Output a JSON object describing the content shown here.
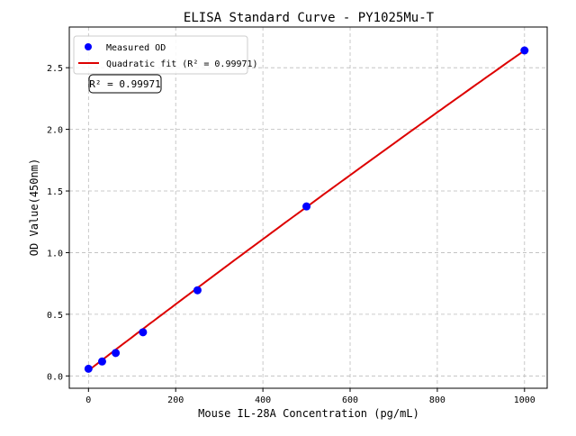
{
  "chart_data": {
    "type": "scatter",
    "title": "ELISA Standard Curve - PY1025Mu-T",
    "xlabel": "Mouse IL-28A Concentration (pg/mL)",
    "ylabel": "OD Value(450nm)",
    "xlim": [
      -44,
      1052
    ],
    "ylim": [
      -0.1,
      2.83
    ],
    "xticks": [
      0,
      200,
      400,
      600,
      800,
      1000
    ],
    "yticks": [
      0.0,
      0.5,
      1.0,
      1.5,
      2.0,
      2.5
    ],
    "xtick_labels": [
      "0",
      "200",
      "400",
      "600",
      "800",
      "1000"
    ],
    "ytick_labels": [
      "0.0",
      "0.5",
      "1.0",
      "1.5",
      "2.0",
      "2.5"
    ],
    "grid": true,
    "legend_position": "top-left",
    "series": [
      {
        "name": "Measured OD",
        "type": "scatter",
        "color": "#0000ff",
        "x": [
          0,
          31.25,
          62.5,
          125,
          250,
          500,
          1000
        ],
        "y": [
          0.058,
          0.117,
          0.186,
          0.354,
          0.695,
          1.375,
          2.64
        ]
      },
      {
        "name": "Quadratic fit (R² = 0.99971)",
        "type": "line",
        "color": "#dd0000",
        "coefficients": {
          "a": 0.045,
          "b": 0.002705,
          "c": -1.1e-07
        }
      }
    ],
    "annotation": "R² = 0.99971"
  }
}
